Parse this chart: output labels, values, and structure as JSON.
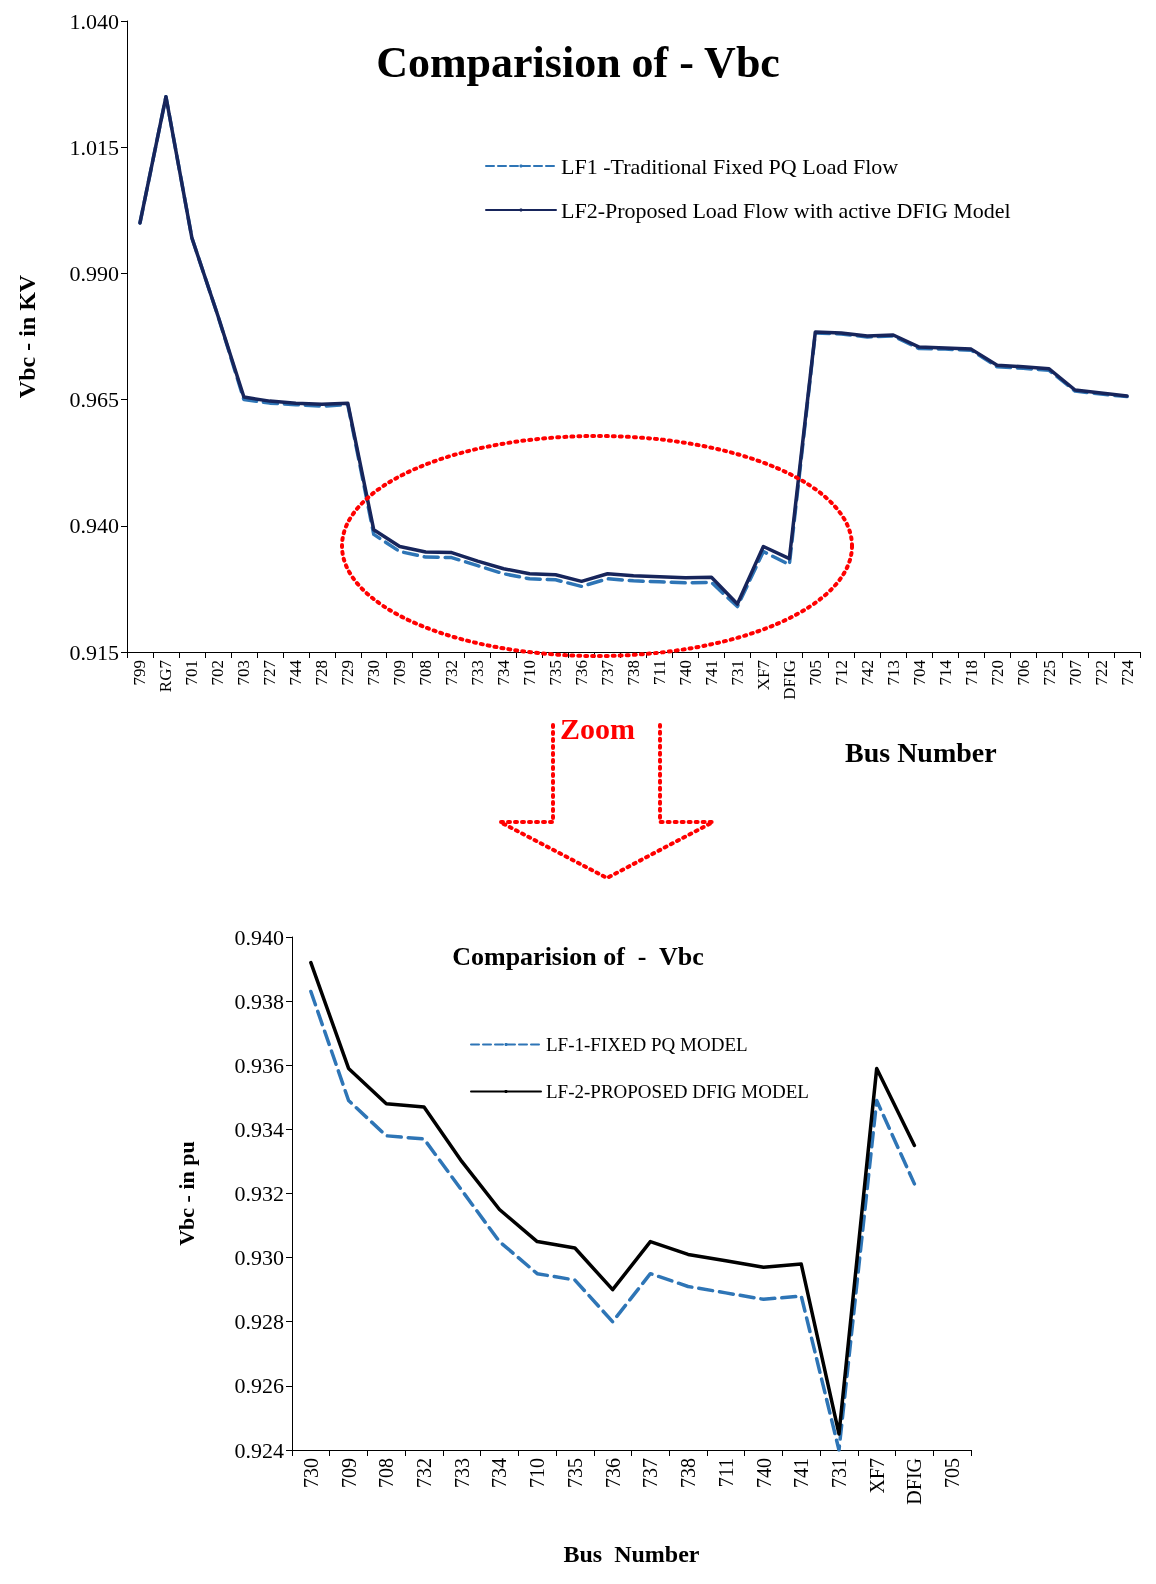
{
  "chart_data": [
    {
      "type": "line",
      "title": "Comparision of - Vbc",
      "xlabel": "Bus Number",
      "ylabel": "Vbc - in KV",
      "annotations": [
        "Zoom"
      ],
      "categories": [
        "799",
        "RG7",
        "701",
        "702",
        "703",
        "727",
        "744",
        "728",
        "729",
        "730",
        "709",
        "708",
        "732",
        "733",
        "734",
        "710",
        "735",
        "736",
        "737",
        "738",
        "711",
        "740",
        "741",
        "731",
        "XF7",
        "DFIG",
        "705",
        "712",
        "742",
        "713",
        "704",
        "714",
        "718",
        "720",
        "706",
        "725",
        "707",
        "722",
        "724"
      ],
      "series": [
        {
          "name": "LF1 -Traditional Fixed PQ Load Flow",
          "color": "#2e75b6",
          "line_style": "dashed",
          "values": [
            1.0,
            1.025,
            0.997,
            0.9816,
            0.965,
            0.9643,
            0.964,
            0.9637,
            0.964,
            0.9383,
            0.9349,
            0.9338,
            0.9337,
            0.9321,
            0.9305,
            0.9295,
            0.9293,
            0.928,
            0.9295,
            0.9291,
            0.9289,
            0.9287,
            0.9288,
            0.924,
            0.9349,
            0.9323,
            0.9782,
            0.978,
            0.9774,
            0.9776,
            0.9751,
            0.975,
            0.9748,
            0.9715,
            0.9712,
            0.9708,
            0.9667,
            0.9661,
            0.9656
          ]
        },
        {
          "name": "LF2-Proposed Load Flow with active DFIG Model",
          "color": "#17255b",
          "line_style": "solid",
          "values": [
            1.0,
            1.025,
            0.997,
            0.9816,
            0.9655,
            0.9647,
            0.9643,
            0.9641,
            0.9643,
            0.9392,
            0.9359,
            0.9348,
            0.9347,
            0.933,
            0.9315,
            0.9305,
            0.9303,
            0.929,
            0.9305,
            0.9301,
            0.9299,
            0.9297,
            0.9298,
            0.9245,
            0.9359,
            0.9335,
            0.9784,
            0.9782,
            0.9776,
            0.9778,
            0.9754,
            0.9752,
            0.975,
            0.9718,
            0.9715,
            0.9711,
            0.9669,
            0.9663,
            0.9657
          ]
        }
      ],
      "ylim": [
        0.915,
        1.04
      ],
      "yticks": [
        {
          "value": 0.915,
          "label": "0.915"
        },
        {
          "value": 0.94,
          "label": "0.940"
        },
        {
          "value": 0.965,
          "label": "0.965"
        },
        {
          "value": 0.99,
          "label": "0.990"
        },
        {
          "value": 1.015,
          "label": "1.015"
        },
        {
          "value": 1.04,
          "label": "1.040"
        }
      ],
      "grid": false,
      "legend": "top right",
      "marker": "none"
    },
    {
      "type": "line",
      "title": "Comparision of  -  Vbc",
      "xlabel": "Bus  Number",
      "ylabel": "Vbc - in pu",
      "categories": [
        "730",
        "709",
        "708",
        "732",
        "733",
        "734",
        "710",
        "735",
        "736",
        "737",
        "738",
        "711",
        "740",
        "741",
        "731",
        "XF7",
        "DFIG",
        "705"
      ],
      "series": [
        {
          "name": "LF-1-FIXED PQ MODEL",
          "color": "#2e75b6",
          "line_style": "dashed",
          "values": [
            0.9383,
            0.9349,
            0.9338,
            0.9337,
            0.9321,
            0.9305,
            0.9295,
            0.9293,
            0.928,
            0.9295,
            0.9291,
            0.9289,
            0.9287,
            0.9288,
            0.924,
            0.9349,
            0.9323,
            null
          ]
        },
        {
          "name": "LF-2-PROPOSED DFIG MODEL",
          "color": "#000000",
          "line_style": "solid",
          "values": [
            0.9392,
            0.9359,
            0.9348,
            0.9347,
            0.933,
            0.9315,
            0.9305,
            0.9303,
            0.929,
            0.9305,
            0.9301,
            0.9299,
            0.9297,
            0.9298,
            0.9245,
            0.9359,
            0.9335,
            null
          ]
        }
      ],
      "ylim": [
        0.924,
        0.94
      ],
      "yticks": [
        {
          "value": 0.924,
          "label": "0.924"
        },
        {
          "value": 0.926,
          "label": "0.926"
        },
        {
          "value": 0.928,
          "label": "0.928"
        },
        {
          "value": 0.93,
          "label": "0.930"
        },
        {
          "value": 0.932,
          "label": "0.932"
        },
        {
          "value": 0.934,
          "label": "0.934"
        },
        {
          "value": 0.936,
          "label": "0.936"
        },
        {
          "value": 0.938,
          "label": "0.938"
        },
        {
          "value": 0.94,
          "label": "0.940"
        }
      ],
      "grid": false,
      "legend": "top",
      "marker": "none"
    }
  ]
}
